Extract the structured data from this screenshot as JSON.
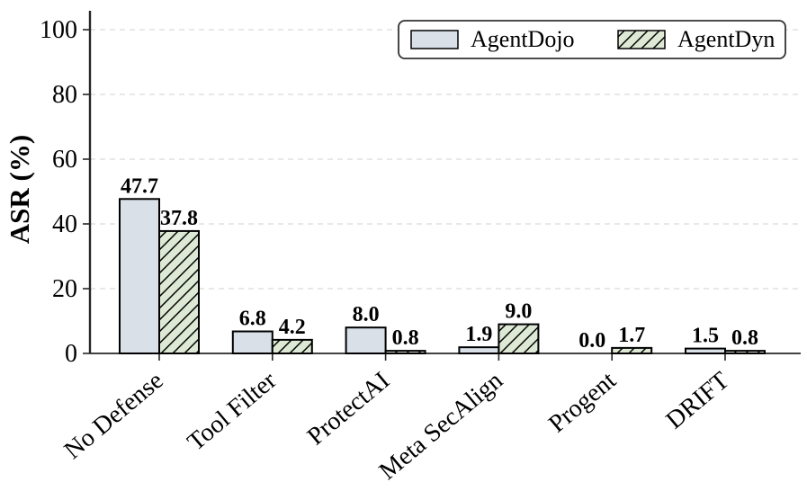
{
  "figure": {
    "background": "#ffffff"
  },
  "chart_data": {
    "type": "bar",
    "title": "",
    "xlabel": "",
    "ylabel": "ASR (%)",
    "categories": [
      "No Defense",
      "Tool Filter",
      "ProtectAI",
      "Meta SecAlign",
      "Progent",
      "DRIFT"
    ],
    "series": [
      {
        "name": "AgentDojo",
        "values": [
          47.7,
          6.8,
          8.0,
          1.9,
          0.0,
          1.5
        ],
        "fill": "#d9e0e8",
        "hatch": "none"
      },
      {
        "name": "AgentDyn",
        "values": [
          37.8,
          4.2,
          0.8,
          9.0,
          1.7,
          0.8
        ],
        "fill": "#dde8d5",
        "hatch": "diagonal"
      }
    ],
    "yticks": [
      0,
      20,
      40,
      60,
      80,
      100
    ],
    "ylim": [
      0,
      106
    ],
    "value_labels": true,
    "value_label_decimals": 1,
    "xtick_rotation_deg": 40,
    "grid": {
      "axis": "y",
      "style": "dashed",
      "color": "#d9d9d9"
    },
    "colors": {
      "bar_edge": "#000000",
      "axis": "#262626",
      "text": "#000000",
      "hatch_line": "#000000",
      "legend_border": "#333333",
      "legend_background": "#ffffff"
    },
    "legend": {
      "position": "upper-right",
      "entries": [
        "AgentDojo",
        "AgentDyn"
      ]
    }
  }
}
